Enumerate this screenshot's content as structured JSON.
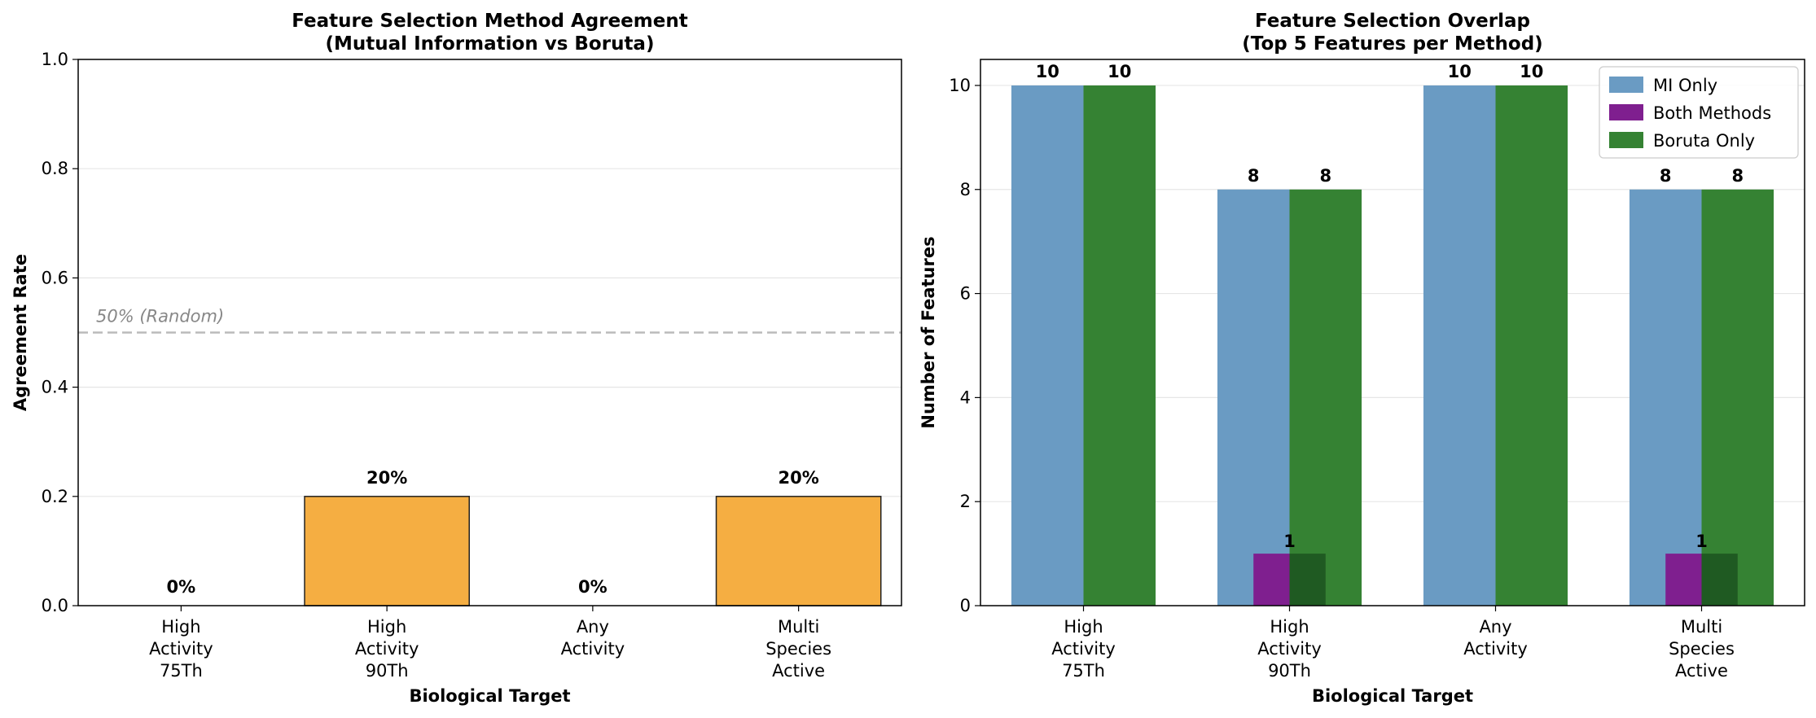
{
  "chart_data": [
    {
      "type": "bar",
      "title": "Feature Selection Method Agreement",
      "subtitle": "(Mutual Information vs Boruta)",
      "xlabel": "Biological Target",
      "ylabel": "Agreement Rate",
      "categories": [
        [
          "High",
          "Activity",
          "75Th"
        ],
        [
          "High",
          "Activity",
          "90Th"
        ],
        [
          "Any",
          "Activity"
        ],
        [
          "Multi",
          "Species",
          "Active"
        ]
      ],
      "values": [
        0.0,
        0.2,
        0.0,
        0.2
      ],
      "value_labels": [
        "0%",
        "20%",
        "0%",
        "20%"
      ],
      "ylim": [
        0,
        1.0
      ],
      "yticks": [
        0.0,
        0.2,
        0.4,
        0.6,
        0.8,
        1.0
      ],
      "ytick_labels": [
        "0.0",
        "0.2",
        "0.4",
        "0.6",
        "0.8",
        "1.0"
      ],
      "reference_line": {
        "value": 0.5,
        "label": "50% (Random)",
        "color": "#bbbbbb"
      },
      "bar_color": "#f5ae42",
      "grid": "horizontal"
    },
    {
      "type": "bar",
      "title": "Feature Selection Overlap",
      "subtitle": "(Top 5 Features per Method)",
      "xlabel": "Biological Target",
      "ylabel": "Number of Features",
      "categories": [
        [
          "High",
          "Activity",
          "75Th"
        ],
        [
          "High",
          "Activity",
          "90Th"
        ],
        [
          "Any",
          "Activity"
        ],
        [
          "Multi",
          "Species",
          "Active"
        ]
      ],
      "series": [
        {
          "name": "MI Only",
          "values": [
            10,
            8,
            10,
            8
          ],
          "color": "#6a9bc3"
        },
        {
          "name": "Both Methods",
          "values": [
            0,
            1,
            0,
            1
          ],
          "color": "#7f1f8f"
        },
        {
          "name": "Boruta Only",
          "values": [
            10,
            8,
            10,
            8
          ],
          "color": "#358233"
        }
      ],
      "overlap_color": "#1f5a22",
      "value_labels": {
        "MI Only": [
          "10",
          "8",
          "10",
          "8"
        ],
        "Both Methods": [
          "",
          "1",
          "",
          "1"
        ],
        "Boruta Only": [
          "10",
          "8",
          "10",
          "8"
        ]
      },
      "ylim": [
        0,
        10.5
      ],
      "yticks": [
        0,
        2,
        4,
        6,
        8,
        10
      ],
      "ytick_labels": [
        "0",
        "2",
        "4",
        "6",
        "8",
        "10"
      ],
      "legend": "top-right",
      "grid": "horizontal"
    }
  ]
}
